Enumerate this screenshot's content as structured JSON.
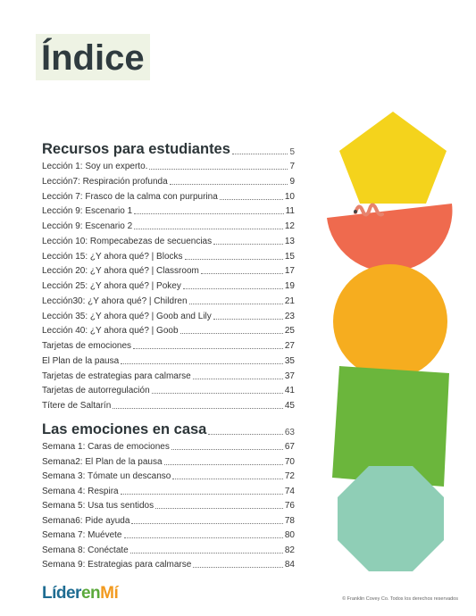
{
  "header": {
    "title": "Índice"
  },
  "sections": [
    {
      "title": "Recursos para estudiantes",
      "page": 5,
      "entries": [
        {
          "label": "Lección 1: Soy un experto.",
          "page": 7
        },
        {
          "label": "Lección7: Respiración profunda",
          "page": 9
        },
        {
          "label": "Lección 7: Frasco de la calma con purpurina",
          "page": 10
        },
        {
          "label": "Lección 9: Escenario 1",
          "page": 11
        },
        {
          "label": "Lección 9: Escenario 2",
          "page": 12
        },
        {
          "label": "Lección 10: Rompecabezas de secuencias",
          "page": 13
        },
        {
          "label": "Lección 15: ¿Y ahora qué? | Blocks",
          "page": 15
        },
        {
          "label": "Lección 20: ¿Y ahora qué? | Classroom",
          "page": 17
        },
        {
          "label": "Lección 25: ¿Y ahora qué? | Pokey",
          "page": 19
        },
        {
          "label": "Lección30: ¿Y ahora qué? | Children",
          "page": 21
        },
        {
          "label": "Lección 35: ¿Y ahora qué? | Goob and Lily",
          "page": 23
        },
        {
          "label": "Lección 40: ¿Y ahora qué? | Goob",
          "page": 25
        },
        {
          "label": "Tarjetas de emociones",
          "page": 27
        },
        {
          "label": "El Plan de la pausa",
          "page": 35
        },
        {
          "label": "Tarjetas de estrategias para calmarse",
          "page": 37
        },
        {
          "label": "Tarjetas de autorregulación",
          "page": 41
        },
        {
          "label": "Títere de Saltarín",
          "page": 45
        }
      ]
    },
    {
      "title": "Las emociones en casa",
      "page": 63,
      "entries": [
        {
          "label": "Semana 1: Caras de emociones",
          "page": 67
        },
        {
          "label": "Semana2: El Plan de la pausa",
          "page": 70
        },
        {
          "label": "Semana 3: Tómate un descanso",
          "page": 72
        },
        {
          "label": "Semana 4: Respira",
          "page": 74
        },
        {
          "label": "Semana 5: Usa tus sentidos",
          "page": 76
        },
        {
          "label": "Semana6: Pide ayuda",
          "page": 78
        },
        {
          "label": "Semana 7: Muévete",
          "page": 80
        },
        {
          "label": "Semana 8: Conéctate",
          "page": 82
        },
        {
          "label": "Semana 9: Estrategias para calmarse",
          "page": 84
        }
      ]
    }
  ],
  "footer": {
    "logo": [
      "Líder",
      "en",
      "Mí"
    ],
    "copyright": "© Franklin Covey Co. Todos los derechos reservados"
  }
}
